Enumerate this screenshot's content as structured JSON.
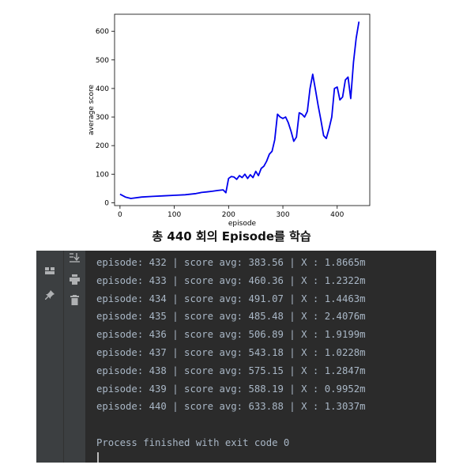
{
  "chart_data": {
    "type": "line",
    "xlabel": "episode",
    "ylabel": "average score",
    "xlim": [
      -10,
      460
    ],
    "ylim": [
      -10,
      660
    ],
    "xticks": [
      0,
      100,
      200,
      300,
      400
    ],
    "yticks": [
      0,
      100,
      200,
      300,
      400,
      500,
      600
    ],
    "grid": false,
    "series": [
      {
        "color": "#0000ee",
        "x": [
          0,
          10,
          20,
          40,
          60,
          80,
          100,
          120,
          140,
          150,
          160,
          170,
          180,
          190,
          195,
          200,
          205,
          210,
          215,
          220,
          225,
          230,
          235,
          240,
          245,
          250,
          255,
          260,
          265,
          270,
          275,
          280,
          285,
          290,
          295,
          300,
          305,
          310,
          315,
          320,
          325,
          330,
          335,
          340,
          345,
          350,
          355,
          360,
          365,
          370,
          375,
          380,
          385,
          390,
          395,
          400,
          405,
          410,
          415,
          420,
          425,
          430,
          435,
          440
        ],
        "y": [
          30,
          20,
          15,
          20,
          22,
          24,
          26,
          28,
          32,
          36,
          38,
          40,
          43,
          45,
          35,
          85,
          92,
          90,
          82,
          95,
          88,
          100,
          85,
          98,
          88,
          110,
          95,
          120,
          128,
          145,
          170,
          180,
          220,
          310,
          300,
          295,
          300,
          280,
          250,
          215,
          230,
          315,
          310,
          300,
          320,
          400,
          450,
          395,
          340,
          290,
          235,
          225,
          260,
          300,
          400,
          405,
          360,
          370,
          430,
          440,
          365,
          492,
          576,
          634
        ]
      }
    ]
  },
  "caption": "총 440 회의 Episode를 학습",
  "console": {
    "lines": [
      "episode: 432 | score avg: 383.56 | X : 1.8665m",
      "episode: 433 | score avg: 460.36 | X : 1.2322m",
      "episode: 434 | score avg: 491.07 | X : 1.4463m",
      "episode: 435 | score avg: 485.48 | X : 2.4076m",
      "episode: 436 | score avg: 506.89 | X : 1.9199m",
      "episode: 437 | score avg: 543.18 | X : 1.0228m",
      "episode: 438 | score avg: 575.15 | X : 1.2847m",
      "episode: 439 | score avg: 588.19 | X : 0.9952m",
      "episode: 440 | score avg: 633.88 | X : 1.3037m"
    ],
    "finish_message": "Process finished with exit code 0"
  },
  "toolbar_icons": [
    "layout-icon",
    "pin-icon",
    "scroll-to-end-icon",
    "print-icon",
    "trash-icon"
  ]
}
